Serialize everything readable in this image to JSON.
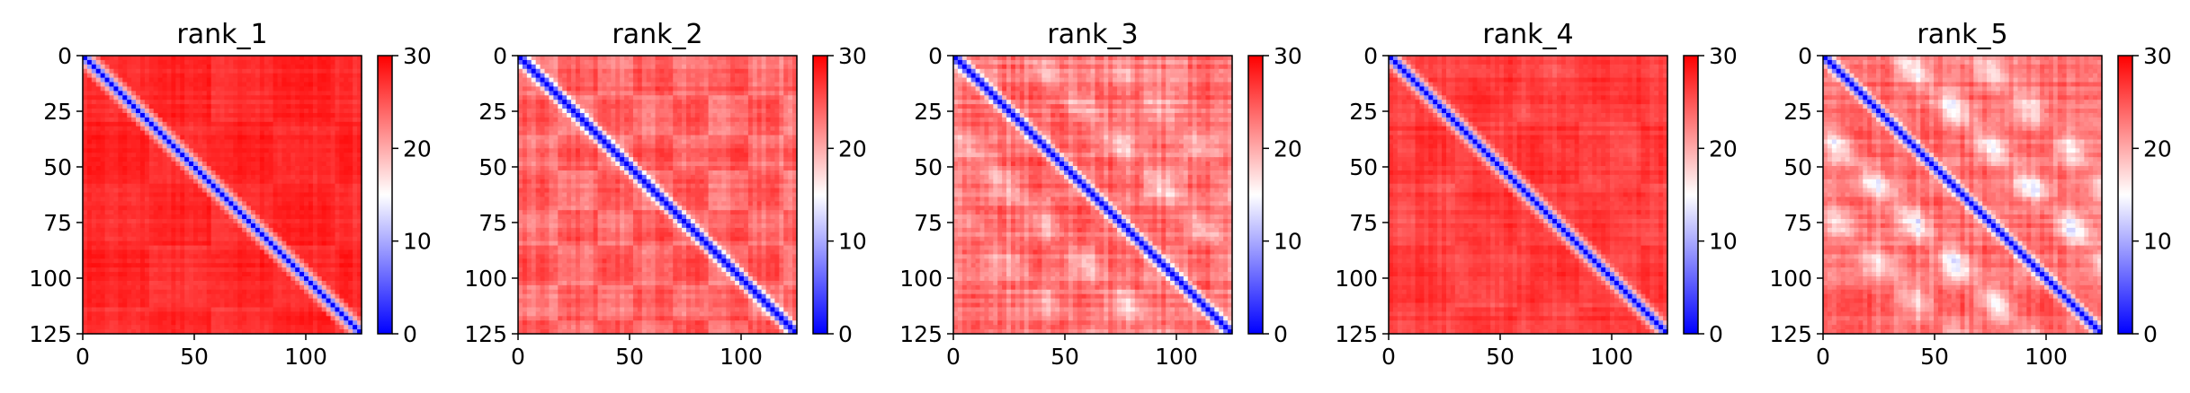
{
  "chart_data": [
    {
      "type": "heatmap",
      "title": "rank_1",
      "xlim": [
        0,
        125
      ],
      "ylim": [
        125,
        0
      ],
      "xticks": [
        "0",
        "50",
        "100"
      ],
      "yticks": [
        "0",
        "25",
        "50",
        "75",
        "100",
        "125"
      ],
      "colorbar": {
        "ticks": [
          "0",
          "10",
          "20",
          "30"
        ],
        "range": [
          0,
          30
        ],
        "colors": [
          "#0000ff",
          "#ffffff",
          "#ff0000"
        ]
      },
      "diag_width": 3.2,
      "off_level": 28,
      "texture": 0.12,
      "blocks": 0.15,
      "block_period": 28,
      "off_diag": 0
    },
    {
      "type": "heatmap",
      "title": "rank_2",
      "xlim": [
        0,
        125
      ],
      "ylim": [
        125,
        0
      ],
      "xticks": [
        "0",
        "50",
        "100"
      ],
      "yticks": [
        "0",
        "25",
        "50",
        "75",
        "100",
        "125"
      ],
      "colorbar": {
        "ticks": [
          "0",
          "10",
          "20",
          "30"
        ],
        "range": [
          0,
          30
        ],
        "colors": [
          "#0000ff",
          "#ffffff",
          "#ff0000"
        ]
      },
      "diag_width": 3.6,
      "off_level": 25,
      "texture": 0.22,
      "blocks": 0.35,
      "block_period": 17,
      "off_diag": 0
    },
    {
      "type": "heatmap",
      "title": "rank_3",
      "xlim": [
        0,
        125
      ],
      "ylim": [
        125,
        0
      ],
      "xticks": [
        "0",
        "50",
        "100"
      ],
      "yticks": [
        "0",
        "25",
        "50",
        "75",
        "100",
        "125"
      ],
      "colorbar": {
        "ticks": [
          "0",
          "10",
          "20",
          "30"
        ],
        "range": [
          0,
          30
        ],
        "colors": [
          "#0000ff",
          "#ffffff",
          "#ff0000"
        ]
      },
      "diag_width": 3.4,
      "off_level": 24,
      "texture": 0.28,
      "blocks": 0.2,
      "block_period": 21,
      "off_diag": 0.55
    },
    {
      "type": "heatmap",
      "title": "rank_4",
      "xlim": [
        0,
        125
      ],
      "ylim": [
        125,
        0
      ],
      "xticks": [
        "0",
        "50",
        "100"
      ],
      "yticks": [
        "0",
        "25",
        "50",
        "75",
        "100",
        "125"
      ],
      "colorbar": {
        "ticks": [
          "0",
          "10",
          "20",
          "30"
        ],
        "range": [
          0,
          30
        ],
        "colors": [
          "#0000ff",
          "#ffffff",
          "#ff0000"
        ]
      },
      "diag_width": 3.3,
      "off_level": 27,
      "texture": 0.14,
      "blocks": 0.15,
      "block_period": 28,
      "off_diag": 0.15
    },
    {
      "type": "heatmap",
      "title": "rank_5",
      "xlim": [
        0,
        125
      ],
      "ylim": [
        125,
        0
      ],
      "xticks": [
        "0",
        "50",
        "100"
      ],
      "yticks": [
        "0",
        "25",
        "50",
        "75",
        "100",
        "125"
      ],
      "colorbar": {
        "ticks": [
          "0",
          "10",
          "20",
          "30"
        ],
        "range": [
          0,
          30
        ],
        "colors": [
          "#0000ff",
          "#ffffff",
          "#ff0000"
        ]
      },
      "diag_width": 3.2,
      "off_level": 24,
      "texture": 0.25,
      "blocks": 0.15,
      "block_period": 21,
      "off_diag": 1.0
    }
  ]
}
